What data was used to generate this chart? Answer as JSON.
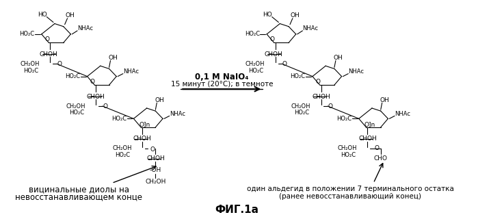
{
  "title": "ФИГ.1а",
  "reaction_condition_line1": "0,1 M NaIO₄",
  "reaction_condition_line2": "15 минут (20°C); в темноте",
  "label_left_line1": "вицинальные диолы на",
  "label_left_line2": "невосстанавливающем конце",
  "label_right_line1": "один альдегид в положении 7 терминального остатка",
  "label_right_line2": "(ранее невосстанавливающий конец)",
  "background_color": "#ffffff",
  "lw": 0.8,
  "fs_label": 8.5,
  "fs_sub": 6.5,
  "fs_title": 11
}
